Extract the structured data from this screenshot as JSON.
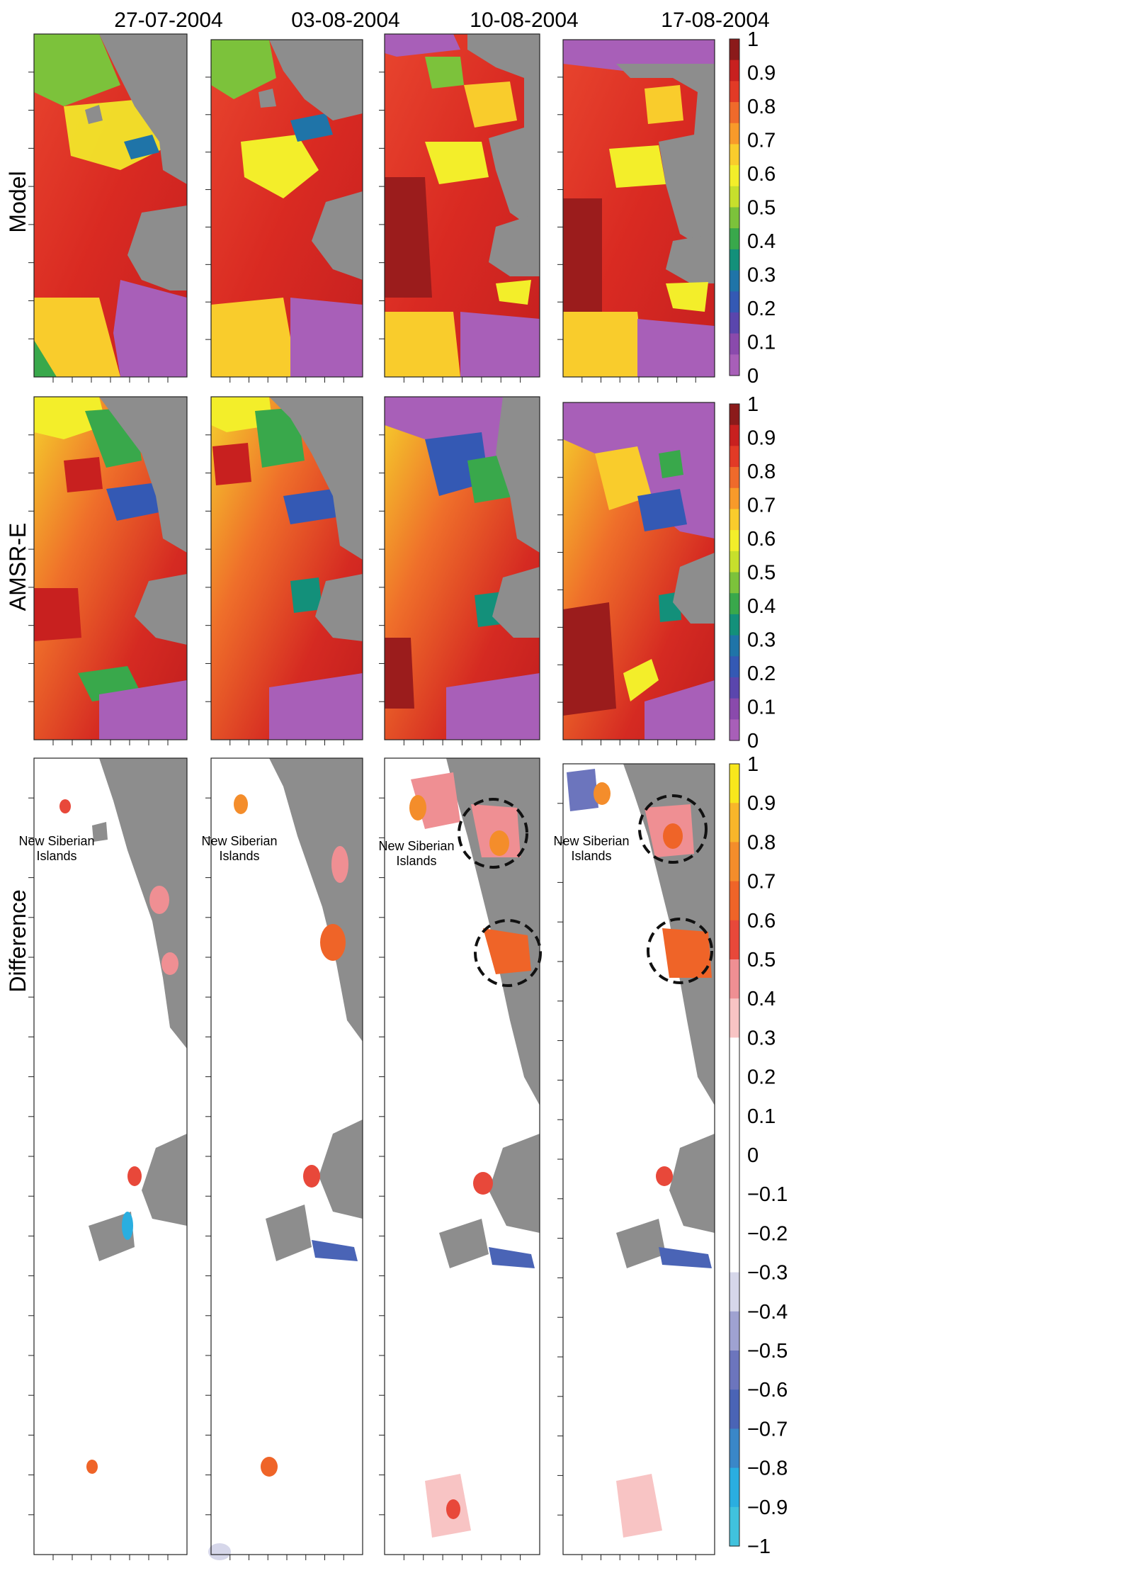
{
  "column_titles": [
    "27-07-2004",
    "03-08-2004",
    "10-08-2004",
    "17-08-2004"
  ],
  "row_labels": [
    "Model",
    "AMSR-E",
    "Difference"
  ],
  "annotation": {
    "line1": "New Siberian",
    "line2": "Islands"
  },
  "colorbars": {
    "concentration": {
      "labels": [
        "1",
        "0.9",
        "0.8",
        "0.7",
        "0.6",
        "0.5",
        "0.4",
        "0.3",
        "0.2",
        "0.1",
        "0"
      ],
      "colors": [
        "#8b1a1a",
        "#c8201f",
        "#e23a26",
        "#ef6a2b",
        "#f89a2a",
        "#f9cc2c",
        "#f3ee2a",
        "#c7df2c",
        "#7cc23b",
        "#39a84b",
        "#13907a",
        "#1f74a8",
        "#3459b4",
        "#5a46ad",
        "#8a4aac",
        "#a85fb8"
      ]
    },
    "difference": {
      "labels": [
        "1",
        "0.9",
        "0.8",
        "0.7",
        "0.6",
        "0.5",
        "0.4",
        "0.3",
        "0.2",
        "0.1",
        "0",
        "−0.1",
        "−0.2",
        "−0.3",
        "−0.4",
        "−0.5",
        "−0.6",
        "−0.7",
        "−0.8",
        "−0.9",
        "−1"
      ],
      "colors": [
        "#f8e71c",
        "#f8b62a",
        "#f48d2b",
        "#ef6428",
        "#e8483a",
        "#ef8f93",
        "#f8c4c4",
        "#ffffff",
        "#ffffff",
        "#ffffff",
        "#ffffff",
        "#ffffff",
        "#ffffff",
        "#d6d7ea",
        "#9fa2d1",
        "#6c75bd",
        "#4a64b6",
        "#3a87c8",
        "#2aaee0",
        "#40c2dd"
      ]
    }
  },
  "colors": {
    "land": "#8d8d8d",
    "frame": "#222222"
  }
}
